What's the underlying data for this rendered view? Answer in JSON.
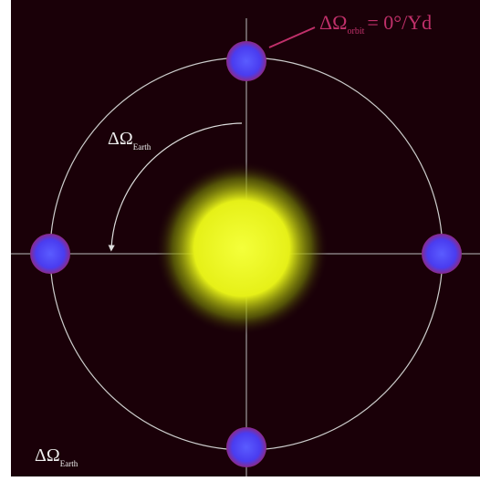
{
  "labels": {
    "top_right": {
      "symbol": "ΔΩ",
      "subscript": "orbit",
      "text": "= 0°/Yd"
    },
    "arc": {
      "symbol": "ΔΩ",
      "subscript": "Earth"
    },
    "bottom_left": {
      "symbol": "ΔΩ",
      "subscript": "Earth"
    }
  }
}
